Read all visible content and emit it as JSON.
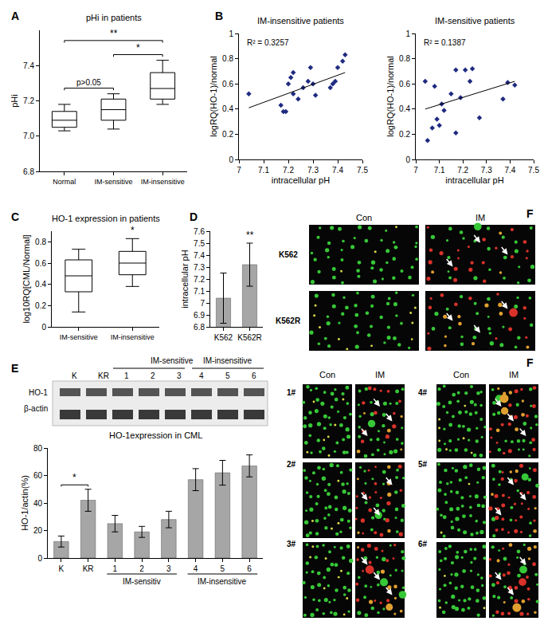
{
  "chart_data": [
    {
      "label": "A",
      "type": "box",
      "title": "pHi in patients",
      "y_label": "pHi",
      "categories": [
        "Normal",
        "IM-sensitive",
        "IM-insensitive"
      ],
      "boxes": {
        "min": [
          7.03,
          7.04,
          7.18
        ],
        "q1": [
          7.05,
          7.09,
          7.21
        ],
        "median": [
          7.09,
          7.15,
          7.27
        ],
        "q3": [
          7.14,
          7.21,
          7.36
        ],
        "max": [
          7.18,
          7.24,
          7.43
        ]
      },
      "ylim": [
        6.8,
        7.6
      ],
      "yticks": [
        6.8,
        {
          "value": 7,
          "label": "7.0"
        },
        7.2,
        7.4
      ],
      "significance": [
        {
          "from": 0,
          "to": 1,
          "text": "p>0.05"
        },
        {
          "from": 1,
          "to": 2,
          "text": "*"
        },
        {
          "from": 0,
          "to": 2,
          "text": "**"
        }
      ],
      "color": "#000000"
    },
    {
      "label": "B",
      "type": "scatter",
      "title": "IM-insensitive patients",
      "x_label": "intracellular pH",
      "y_label": "logRQ(HO-1)/normal",
      "x": [
        7.04,
        7.17,
        7.18,
        7.19,
        7.2,
        7.21,
        7.22,
        7.22,
        7.24,
        7.26,
        7.28,
        7.29,
        7.3,
        7.31,
        7.37,
        7.38,
        7.39,
        7.4,
        7.42,
        7.43
      ],
      "values": [
        0.52,
        0.43,
        0.38,
        0.38,
        0.6,
        0.65,
        0.69,
        0.52,
        0.48,
        0.57,
        0.62,
        0.73,
        0.6,
        0.51,
        0.57,
        0.6,
        0.62,
        0.73,
        0.78,
        0.83
      ],
      "trendline": {
        "x": [
          7.04,
          7.43
        ],
        "values": [
          0.41,
          0.69
        ]
      },
      "annotation": "R² = 0.3257",
      "xlim": [
        7,
        7.5
      ],
      "xticks": [
        7,
        7.1,
        7.2,
        7.3,
        7.4,
        7.5
      ],
      "ylim": [
        0,
        1
      ],
      "yticks": [
        0,
        0.2,
        0.4,
        0.6,
        0.8,
        1
      ],
      "color": "#1f2a80",
      "marker": "diamond"
    },
    {
      "type": "scatter",
      "title": "IM-sensitive patients",
      "x_label": "intracellular pH",
      "y_label": "logRQ(HO-1)/normal",
      "x": [
        7.04,
        7.05,
        7.07,
        7.08,
        7.09,
        7.1,
        7.11,
        7.12,
        7.15,
        7.17,
        7.17,
        7.19,
        7.21,
        7.23,
        7.24,
        7.27,
        7.37,
        7.39,
        7.42
      ],
      "values": [
        0.62,
        0.15,
        0.25,
        0.58,
        0.32,
        0.27,
        0.44,
        0.39,
        0.52,
        0.71,
        0.21,
        0.49,
        0.71,
        0.62,
        0.72,
        0.33,
        0.48,
        0.61,
        0.59
      ],
      "trendline": {
        "x": [
          7.04,
          7.42
        ],
        "values": [
          0.4,
          0.62
        ]
      },
      "annotation": "R² = 0.1387",
      "xlim": [
        7,
        7.5
      ],
      "xticks": [
        7,
        7.1,
        7.2,
        7.3,
        7.4,
        7.5
      ],
      "ylim": [
        0,
        1
      ],
      "yticks": [
        0,
        0.2,
        0.4,
        0.6,
        0.8,
        1
      ],
      "color": "#1f2a80",
      "marker": "diamond"
    },
    {
      "label": "C",
      "type": "box",
      "title": "HO-1 expression in patients",
      "y_label": "log10RQ[CML/Normal]",
      "categories": [
        "IM-sensitive",
        "IM-insensitive"
      ],
      "boxes": {
        "min": [
          0.14,
          0.38
        ],
        "q1": [
          0.33,
          0.49
        ],
        "median": [
          0.48,
          0.6
        ],
        "q3": [
          0.63,
          0.71
        ],
        "max": [
          0.73,
          0.83
        ]
      },
      "ylim": [
        0,
        0.9
      ],
      "yticks": [
        0,
        0.2,
        0.4,
        0.6,
        0.8
      ],
      "significance": [
        {
          "from": 1,
          "to": 1,
          "text": "*"
        }
      ],
      "color": "#000000"
    },
    {
      "label": "D",
      "type": "bar",
      "y_label": "intracellular pH",
      "categories": [
        "K562",
        "K562R"
      ],
      "values": [
        7.04,
        7.32
      ],
      "errors": [
        0.21,
        0.18
      ],
      "ylim": [
        6.8,
        7.6
      ],
      "yticks": [
        6.8,
        6.9,
        7,
        7.1,
        7.2,
        7.3,
        7.4,
        7.5,
        7.6
      ],
      "significance": [
        {
          "from": 1,
          "to": 1,
          "text": "**"
        }
      ],
      "color": "#a6a6a6"
    },
    {
      "label": "E",
      "type": "bar",
      "title": "HO-1expression in CML",
      "y_label": "HO-1/actin(%)",
      "categories": [
        "K",
        "KR",
        "1",
        "2",
        "3",
        "4",
        "5",
        "6"
      ],
      "values": [
        12,
        42,
        25,
        19,
        28,
        57,
        62,
        67
      ],
      "errors": [
        4,
        8,
        6,
        4,
        6,
        8,
        9,
        8
      ],
      "groups": [
        {
          "text": "IM-sensitiv",
          "from": 2,
          "to": 4
        },
        {
          "text": "IM-insensitive",
          "from": 5,
          "to": 7
        }
      ],
      "ylim": [
        0,
        80
      ],
      "yticks": [
        0,
        20,
        40,
        60,
        80
      ],
      "significance": [
        {
          "from": 0,
          "to": 1,
          "text": "*"
        }
      ],
      "color": "#a6a6a6"
    }
  ],
  "blot": {
    "lanes": [
      "K",
      "KR",
      "1",
      "2",
      "3",
      "4",
      "5",
      "6"
    ],
    "groups": [
      {
        "text": "IM-sensitive",
        "from": 2,
        "to": 4
      },
      {
        "text": "IM-insensitive",
        "from": 5,
        "to": 7
      }
    ],
    "rows": [
      "HO-1",
      "β-actin"
    ]
  },
  "microscopy_top": {
    "label": "F",
    "columns": [
      "Con",
      "IM"
    ],
    "rows": [
      "K562",
      "K562R"
    ]
  },
  "microscopy_bottom": {
    "label": "F",
    "columns": [
      "Con",
      "IM"
    ],
    "rows": [
      [
        "1#",
        "2#",
        "3#"
      ],
      [
        "4#",
        "5#",
        "6#"
      ]
    ]
  }
}
